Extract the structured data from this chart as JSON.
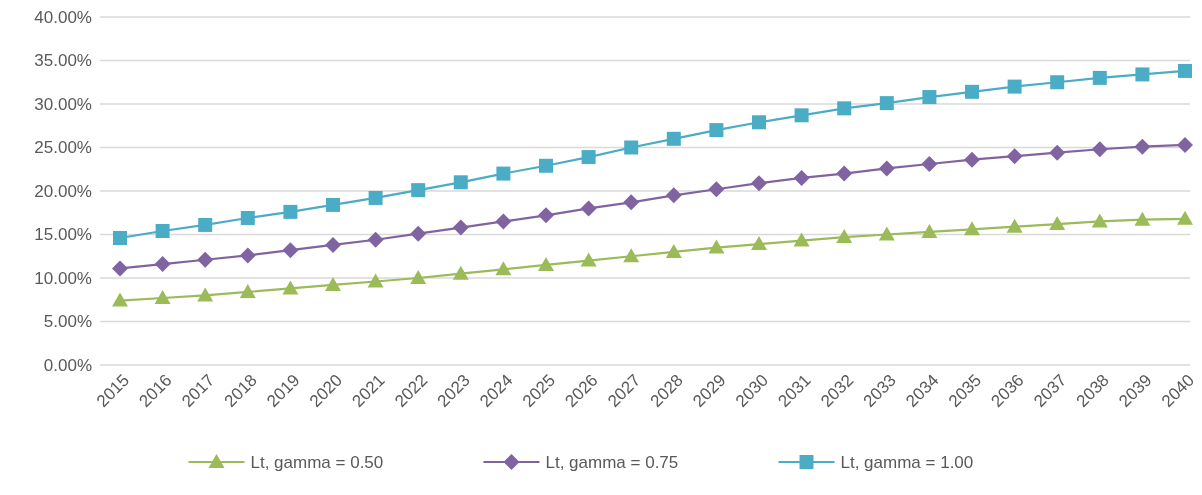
{
  "chart_data": {
    "type": "line",
    "categories": [
      "2015",
      "2016",
      "2017",
      "2018",
      "2019",
      "2020",
      "2021",
      "2022",
      "2023",
      "2024",
      "2025",
      "2026",
      "2027",
      "2028",
      "2029",
      "2030",
      "2031",
      "2032",
      "2033",
      "2034",
      "2035",
      "2036",
      "2037",
      "2038",
      "2039",
      "2040"
    ],
    "series": [
      {
        "name": "Lt, gamma = 0.50",
        "color": "#9bbb59",
        "marker": "triangle",
        "values": [
          7.4,
          7.7,
          8.0,
          8.4,
          8.8,
          9.2,
          9.6,
          10.0,
          10.5,
          11.0,
          11.5,
          12.0,
          12.5,
          13.0,
          13.5,
          13.9,
          14.3,
          14.7,
          15.0,
          15.3,
          15.6,
          15.9,
          16.2,
          16.5,
          16.7,
          16.8
        ]
      },
      {
        "name": "Lt, gamma = 0.75",
        "color": "#8064a2",
        "marker": "diamond",
        "values": [
          11.1,
          11.6,
          12.1,
          12.6,
          13.2,
          13.8,
          14.4,
          15.1,
          15.8,
          16.5,
          17.2,
          18.0,
          18.7,
          19.5,
          20.2,
          20.9,
          21.5,
          22.0,
          22.6,
          23.1,
          23.6,
          24.0,
          24.4,
          24.8,
          25.1,
          25.3
        ]
      },
      {
        "name": "Lt, gamma = 1.00",
        "color": "#4bacc6",
        "marker": "square",
        "values": [
          14.6,
          15.4,
          16.1,
          16.9,
          17.6,
          18.4,
          19.2,
          20.1,
          21.0,
          22.0,
          22.9,
          23.9,
          25.0,
          26.0,
          27.0,
          27.9,
          28.7,
          29.5,
          30.1,
          30.8,
          31.4,
          32.0,
          32.5,
          33.0,
          33.4,
          33.8
        ]
      }
    ],
    "ylim": [
      0,
      40
    ],
    "yticks": [
      {
        "value": 0,
        "label": "0.00%"
      },
      {
        "value": 5,
        "label": "5.00%"
      },
      {
        "value": 10,
        "label": "10.00%"
      },
      {
        "value": 15,
        "label": "15.00%"
      },
      {
        "value": 20,
        "label": "20.00%"
      },
      {
        "value": 25,
        "label": "25.00%"
      },
      {
        "value": 30,
        "label": "30.00%"
      },
      {
        "value": 35,
        "label": "35.00%"
      },
      {
        "value": 40,
        "label": "40.00%"
      }
    ],
    "grid": "y",
    "legend": "bottom",
    "line_style": "solid"
  }
}
